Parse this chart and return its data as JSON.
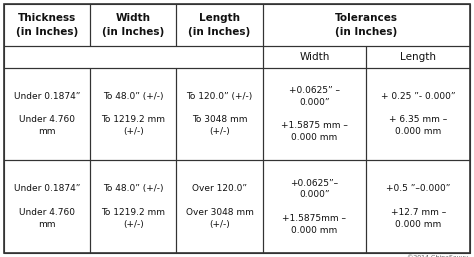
{
  "copyright": "©2014 ChinaSavvy",
  "bg_color": "#ffffff",
  "border_color": "#333333",
  "text_color": "#111111",
  "font_size": 6.5,
  "header_font_size": 7.5,
  "col_props": [
    0.185,
    0.185,
    0.185,
    0.2225,
    0.2225
  ],
  "row_props": [
    0.168,
    0.088,
    0.372,
    0.372
  ],
  "header_row1": [
    "Thickness\n(in Inches)",
    "Width\n(in Inches)",
    "Length\n(in Inches)",
    "Tolerances\n(in Inches)",
    ""
  ],
  "header_row2": [
    "",
    "",
    "",
    "Width",
    "Length"
  ],
  "rows": [
    [
      "Under 0.1874”\n\nUnder 4.760\nmm",
      "To 48.0” (+/-)\n\nTo 1219.2 mm\n(+/-)",
      "To 120.0” (+/-)\n\nTo 3048 mm\n(+/-)",
      "+0.0625” –\n0.000”\n\n+1.5875 mm –\n0.000 mm",
      "+ 0.25 ”- 0.000”\n\n+ 6.35 mm –\n0.000 mm"
    ],
    [
      "Under 0.1874”\n\nUnder 4.760\nmm",
      "To 48.0” (+/-)\n\nTo 1219.2 mm\n(+/-)",
      "Over 120.0”\n\nOver 3048 mm\n(+/-)",
      "+0.0625”–\n0.000”\n\n+1.5875mm –\n0.000 mm",
      "+0.5 ”–0.000”\n\n+12.7 mm –\n0.000 mm"
    ]
  ]
}
